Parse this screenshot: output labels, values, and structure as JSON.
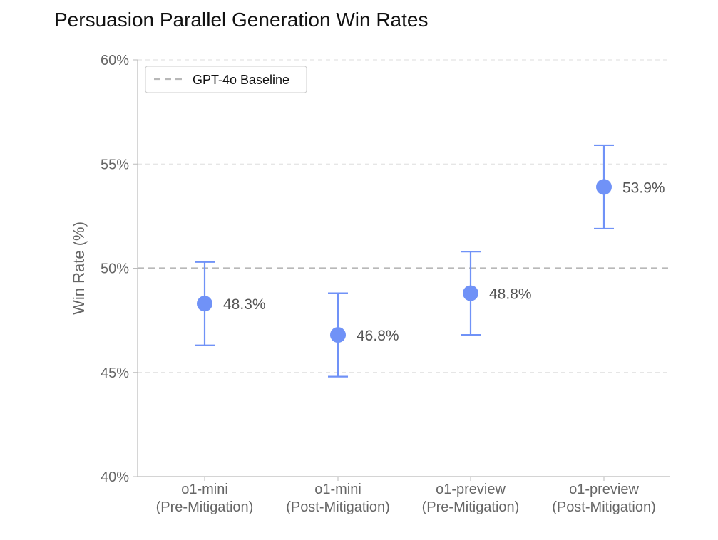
{
  "chart_data": {
    "type": "scatter",
    "title": "Persuasion Parallel Generation Win Rates",
    "xlabel": "",
    "ylabel": "Win Rate (%)",
    "ylim": [
      40,
      60
    ],
    "y_ticks": [
      40,
      45,
      50,
      55,
      60
    ],
    "y_tick_labels": [
      "40%",
      "45%",
      "50%",
      "55%",
      "60%"
    ],
    "grid": "horizontal dashed",
    "categories": [
      [
        "o1-mini",
        "(Pre-Mitigation)"
      ],
      [
        "o1-mini",
        "(Post-Mitigation)"
      ],
      [
        "o1-preview",
        "(Pre-Mitigation)"
      ],
      [
        "o1-preview",
        "(Post-Mitigation)"
      ]
    ],
    "values": [
      48.3,
      46.8,
      48.8,
      53.9
    ],
    "error_low": [
      46.3,
      44.8,
      46.8,
      51.9
    ],
    "error_high": [
      50.3,
      48.8,
      50.8,
      55.9
    ],
    "data_labels": [
      "48.3%",
      "46.8%",
      "48.8%",
      "53.9%"
    ],
    "baseline": {
      "name": "GPT-4o Baseline",
      "value": 50
    },
    "legend": {
      "placement": "top-left",
      "entries": [
        "GPT-4o Baseline"
      ]
    },
    "colors": {
      "marker": "#7092f7",
      "baseline": "#b8b8b8",
      "grid": "#dddddd",
      "axis": "#bbbbbb"
    }
  }
}
